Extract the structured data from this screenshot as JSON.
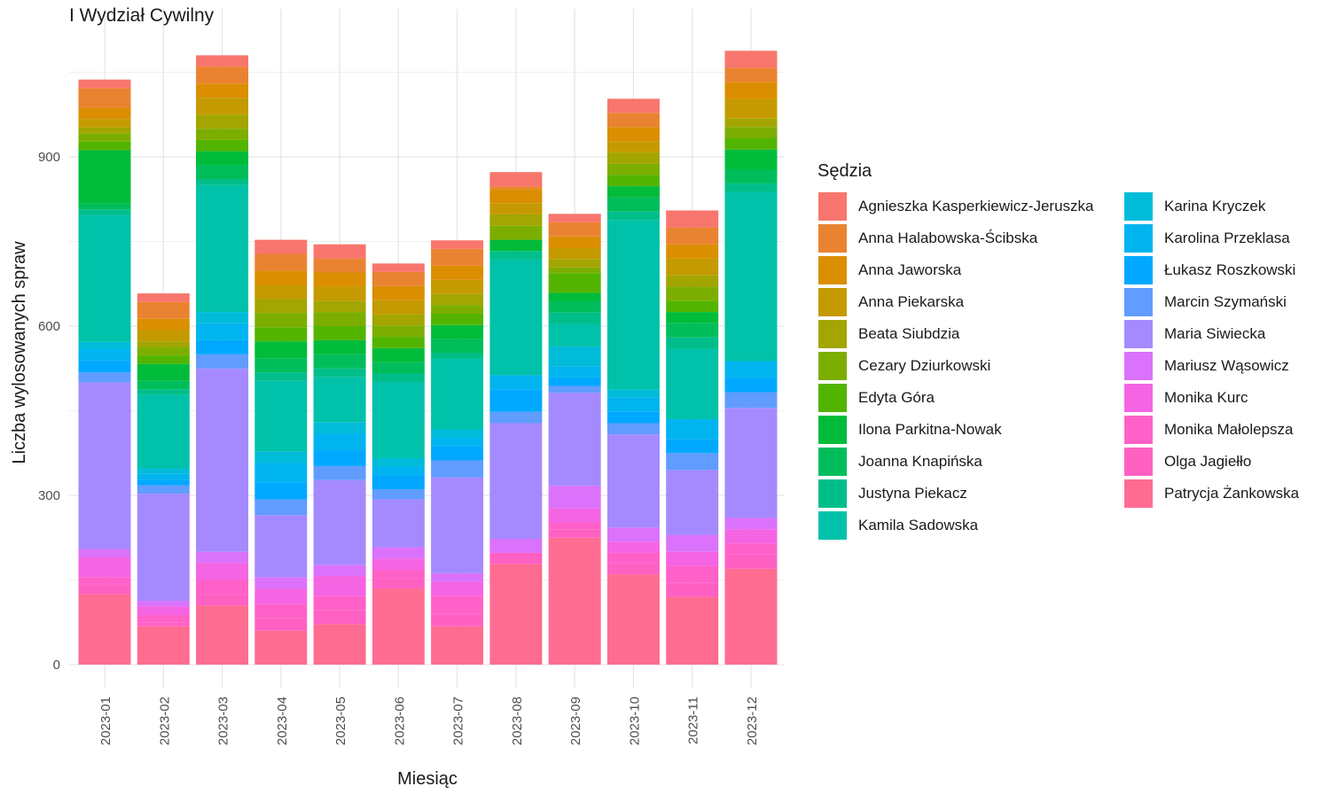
{
  "chart_data": {
    "type": "bar",
    "stacked": true,
    "title": "I Wydział Cywilny",
    "xlabel": "Miesiąc",
    "ylabel": "Liczba wylosowanych spraw",
    "ylim": [
      0,
      1150
    ],
    "yticks": [
      0,
      300,
      600,
      900
    ],
    "grid": true,
    "legend_title": "Sędzia",
    "legend_position": "right",
    "categories": [
      "2023-01",
      "2023-02",
      "2023-03",
      "2023-04",
      "2023-05",
      "2023-06",
      "2023-07",
      "2023-08",
      "2023-09",
      "2023-10",
      "2023-11",
      "2023-12"
    ],
    "series": [
      {
        "name": "Patrycja Żankowska",
        "color": "#FF6C91",
        "values": [
          125,
          68,
          105,
          60,
          72,
          135,
          68,
          178,
          225,
          160,
          120,
          170
        ]
      },
      {
        "name": "Olga Jagiełło",
        "color": "#FF61C3",
        "values": [
          15,
          7,
          20,
          22,
          25,
          18,
          22,
          20,
          15,
          20,
          25,
          25
        ]
      },
      {
        "name": "Monika Małolepsza",
        "color": "#FF61C9",
        "values": [
          15,
          13,
          25,
          25,
          25,
          15,
          32,
          0,
          12,
          18,
          30,
          20
        ]
      },
      {
        "name": "Monika Kurc",
        "color": "#F564E3",
        "values": [
          35,
          15,
          30,
          28,
          35,
          20,
          25,
          0,
          25,
          20,
          25,
          25
        ]
      },
      {
        "name": "Mariusz Wąsowicz",
        "color": "#DB72FB",
        "values": [
          15,
          10,
          20,
          20,
          20,
          20,
          15,
          25,
          40,
          25,
          30,
          20
        ]
      },
      {
        "name": "Maria Siwiecka",
        "color": "#A58AFF",
        "values": [
          295,
          190,
          325,
          110,
          150,
          85,
          170,
          205,
          165,
          165,
          115,
          195
        ]
      },
      {
        "name": "Marcin Szymański",
        "color": "#619CFF",
        "values": [
          18,
          15,
          25,
          28,
          25,
          18,
          30,
          20,
          12,
          20,
          30,
          28
        ]
      },
      {
        "name": "Łukasz Roszkowski",
        "color": "#00A9FF",
        "values": [
          22,
          10,
          25,
          30,
          28,
          25,
          25,
          40,
          15,
          20,
          25,
          25
        ]
      },
      {
        "name": "Karolina Przeklasa",
        "color": "#00B4EF",
        "values": [
          20,
          10,
          30,
          35,
          30,
          15,
          15,
          25,
          20,
          25,
          35,
          30
        ]
      },
      {
        "name": "Karina Kryczek",
        "color": "#00BCD8",
        "values": [
          12,
          10,
          20,
          20,
          20,
          15,
          15,
          0,
          35,
          15,
          0,
          0
        ]
      },
      {
        "name": "Kamila Sadowska",
        "color": "#00C1A9",
        "values": [
          225,
          130,
          225,
          125,
          80,
          135,
          125,
          205,
          40,
          300,
          125,
          300
        ]
      },
      {
        "name": "Justyna Piekacz",
        "color": "#00BE8A",
        "values": [
          10,
          10,
          10,
          15,
          15,
          15,
          10,
          15,
          20,
          15,
          20,
          15
        ]
      },
      {
        "name": "Joanna Knapińska",
        "color": "#00BD5C",
        "values": [
          10,
          15,
          25,
          25,
          25,
          20,
          25,
          0,
          20,
          25,
          25,
          25
        ]
      },
      {
        "name": "Ilona Parkitna-Nowak",
        "color": "#00BC3A",
        "values": [
          95,
          30,
          25,
          30,
          25,
          25,
          25,
          20,
          15,
          20,
          20,
          35
        ]
      },
      {
        "name": "Edyta Góra",
        "color": "#53B400",
        "values": [
          15,
          15,
          20,
          25,
          25,
          20,
          20,
          0,
          35,
          20,
          20,
          20
        ]
      },
      {
        "name": "Cezary Dziurkowski",
        "color": "#7CAE00",
        "values": [
          15,
          15,
          20,
          25,
          25,
          20,
          15,
          25,
          10,
          20,
          25,
          20
        ]
      },
      {
        "name": "Beata Siubdzia",
        "color": "#A3A500",
        "values": [
          10,
          10,
          25,
          25,
          20,
          20,
          20,
          20,
          15,
          20,
          20,
          15
        ]
      },
      {
        "name": "Anna Piekarska",
        "color": "#C49A00",
        "values": [
          15,
          20,
          30,
          25,
          25,
          25,
          25,
          20,
          20,
          20,
          30,
          35
        ]
      },
      {
        "name": "Anna Jaworska",
        "color": "#DB8E00",
        "values": [
          20,
          20,
          25,
          25,
          25,
          25,
          25,
          25,
          20,
          25,
          25,
          30
        ]
      },
      {
        "name": "Anna Halabowska-Ścibska",
        "color": "#EA8331",
        "values": [
          35,
          30,
          30,
          30,
          25,
          25,
          30,
          5,
          25,
          25,
          30,
          25
        ]
      },
      {
        "name": "Agnieszka Kasperkiewicz-Jeruszka",
        "color": "#F8766D",
        "values": [
          15,
          15,
          20,
          25,
          25,
          15,
          15,
          25,
          15,
          25,
          30,
          30
        ]
      }
    ]
  }
}
